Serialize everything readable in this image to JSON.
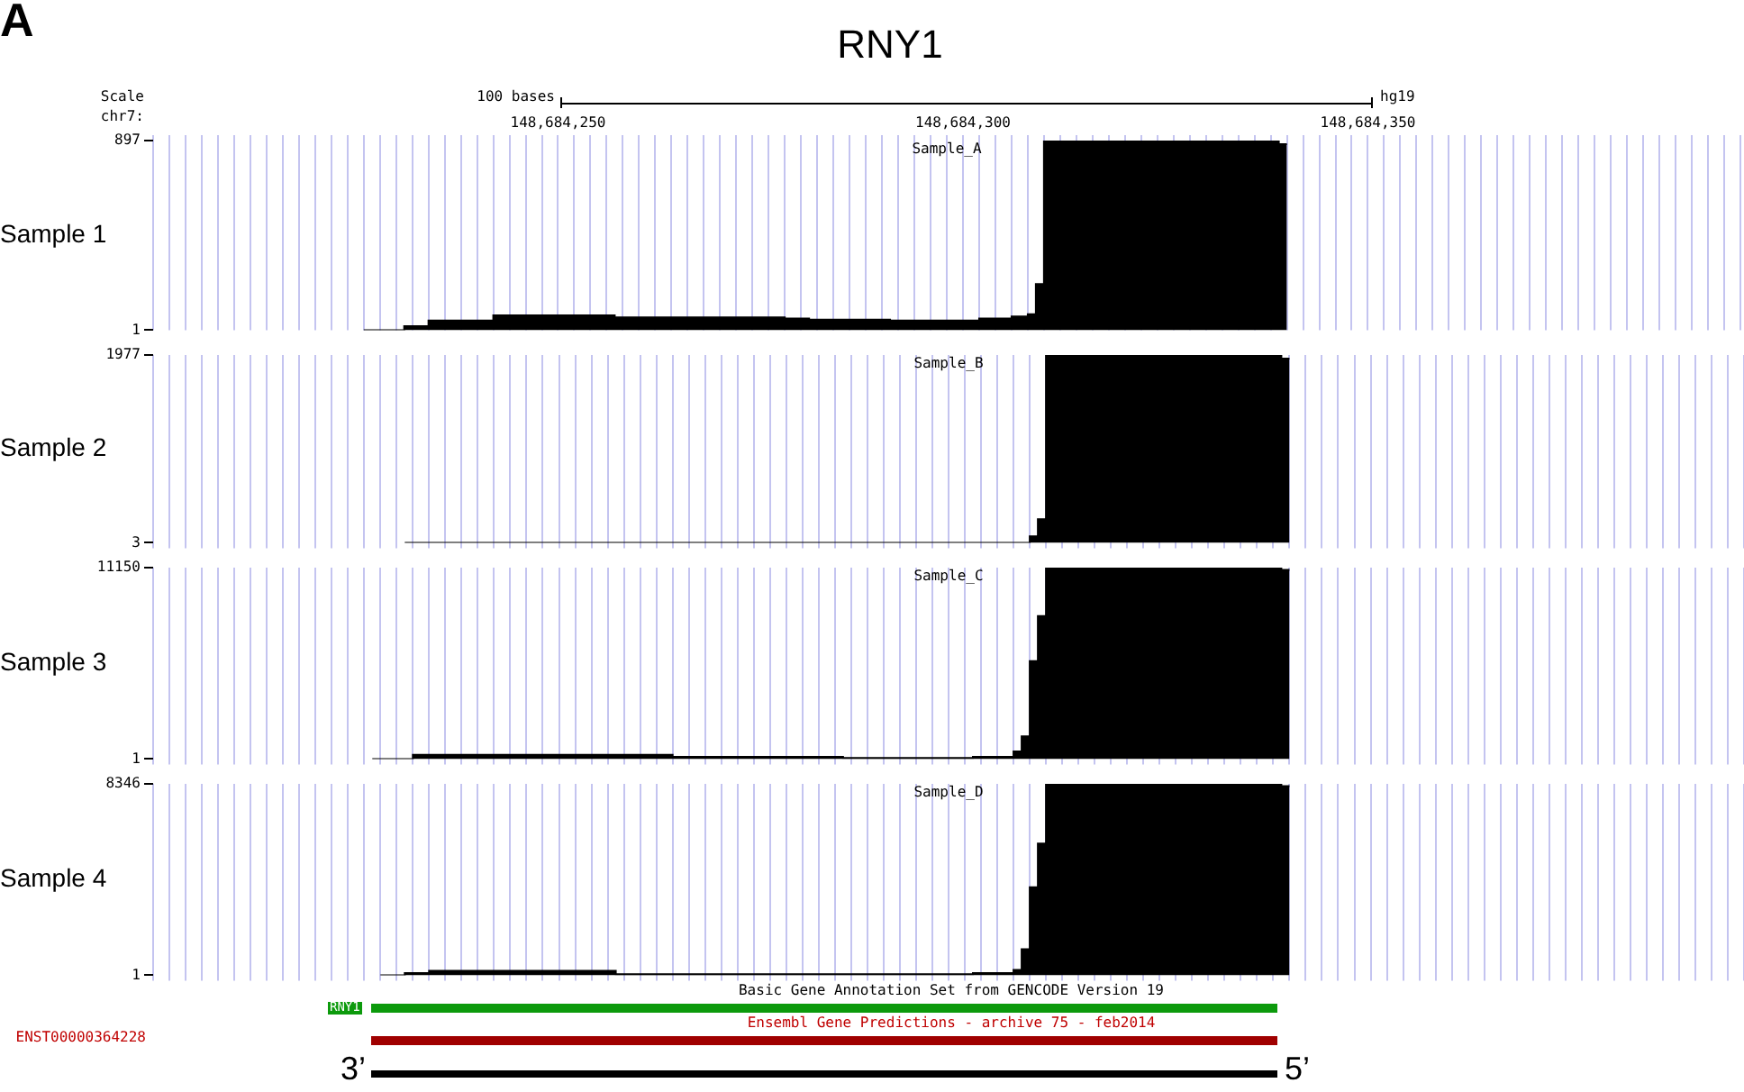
{
  "chart_data": [
    {
      "type": "histogram",
      "title": "Sample_A",
      "ylabel": "Sample 1",
      "color": "#000000",
      "grid": "x",
      "bins": [
        148684226,
        148684231,
        148684234,
        148684242,
        148684257,
        148684278,
        148684281,
        148684291,
        148684302,
        148684306,
        148684308,
        148684309,
        148684310,
        148684313,
        148684339,
        148684340
      ],
      "values": [
        1,
        20,
        46,
        71,
        61,
        56,
        51,
        46,
        56,
        66,
        76,
        219,
        893,
        897,
        880
      ],
      "xlim": [
        148684200,
        148684396
      ],
      "xticks": [
        {
          "value": 148684200,
          "label": null
        },
        {
          "value": 148684202,
          "label": null
        },
        {
          "value": 148684204,
          "label": null
        },
        {
          "value": 148684206,
          "label": null
        },
        {
          "value": 148684208,
          "label": null
        },
        {
          "value": 148684210,
          "label": null
        },
        {
          "value": 148684212,
          "label": null
        },
        {
          "value": 148684214,
          "label": null
        },
        {
          "value": 148684216,
          "label": null
        },
        {
          "value": 148684218,
          "label": null
        },
        {
          "value": 148684220,
          "label": null
        },
        {
          "value": 148684222,
          "label": null
        },
        {
          "value": 148684224,
          "label": null
        },
        {
          "value": 148684226,
          "label": null
        },
        {
          "value": 148684228,
          "label": null
        },
        {
          "value": 148684230,
          "label": null
        },
        {
          "value": 148684232,
          "label": null
        },
        {
          "value": 148684234,
          "label": null
        },
        {
          "value": 148684236,
          "label": null
        },
        {
          "value": 148684238,
          "label": null
        },
        {
          "value": 148684240,
          "label": null
        },
        {
          "value": 148684242,
          "label": null
        },
        {
          "value": 148684244,
          "label": null
        },
        {
          "value": 148684246,
          "label": null
        },
        {
          "value": 148684248,
          "label": null
        },
        {
          "value": 148684250,
          "label": "148,684,250"
        },
        {
          "value": 148684252,
          "label": null
        },
        {
          "value": 148684254,
          "label": null
        },
        {
          "value": 148684256,
          "label": null
        },
        {
          "value": 148684258,
          "label": null
        },
        {
          "value": 148684260,
          "label": null
        },
        {
          "value": 148684262,
          "label": null
        },
        {
          "value": 148684264,
          "label": null
        },
        {
          "value": 148684266,
          "label": null
        },
        {
          "value": 148684268,
          "label": null
        },
        {
          "value": 148684270,
          "label": null
        },
        {
          "value": 148684272,
          "label": null
        },
        {
          "value": 148684274,
          "label": null
        },
        {
          "value": 148684276,
          "label": null
        },
        {
          "value": 148684278,
          "label": null
        },
        {
          "value": 148684280,
          "label": null
        },
        {
          "value": 148684282,
          "label": null
        },
        {
          "value": 148684284,
          "label": null
        },
        {
          "value": 148684286,
          "label": null
        },
        {
          "value": 148684288,
          "label": null
        },
        {
          "value": 148684290,
          "label": null
        },
        {
          "value": 148684292,
          "label": null
        },
        {
          "value": 148684294,
          "label": null
        },
        {
          "value": 148684296,
          "label": null
        },
        {
          "value": 148684298,
          "label": null
        },
        {
          "value": 148684300,
          "label": "148,684,300"
        },
        {
          "value": 148684302,
          "label": null
        },
        {
          "value": 148684304,
          "label": null
        },
        {
          "value": 148684306,
          "label": null
        },
        {
          "value": 148684308,
          "label": null
        },
        {
          "value": 148684310,
          "label": null
        },
        {
          "value": 148684312,
          "label": null
        },
        {
          "value": 148684314,
          "label": null
        },
        {
          "value": 148684316,
          "label": null
        },
        {
          "value": 148684318,
          "label": null
        },
        {
          "value": 148684320,
          "label": null
        },
        {
          "value": 148684322,
          "label": null
        },
        {
          "value": 148684324,
          "label": null
        },
        {
          "value": 148684326,
          "label": null
        },
        {
          "value": 148684328,
          "label": null
        },
        {
          "value": 148684330,
          "label": null
        },
        {
          "value": 148684332,
          "label": null
        },
        {
          "value": 148684334,
          "label": null
        },
        {
          "value": 148684336,
          "label": null
        },
        {
          "value": 148684338,
          "label": null
        },
        {
          "value": 148684340,
          "label": null
        },
        {
          "value": 148684342,
          "label": null
        },
        {
          "value": 148684344,
          "label": null
        },
        {
          "value": 148684346,
          "label": null
        },
        {
          "value": 148684348,
          "label": null
        },
        {
          "value": 148684350,
          "label": "148,684,350"
        },
        {
          "value": 148684352,
          "label": null
        },
        {
          "value": 148684354,
          "label": null
        },
        {
          "value": 148684356,
          "label": null
        },
        {
          "value": 148684358,
          "label": null
        },
        {
          "value": 148684360,
          "label": null
        },
        {
          "value": 148684362,
          "label": null
        },
        {
          "value": 148684364,
          "label": null
        },
        {
          "value": 148684366,
          "label": null
        },
        {
          "value": 148684368,
          "label": null
        },
        {
          "value": 148684370,
          "label": null
        },
        {
          "value": 148684372,
          "label": null
        },
        {
          "value": 148684374,
          "label": null
        },
        {
          "value": 148684376,
          "label": null
        },
        {
          "value": 148684378,
          "label": null
        },
        {
          "value": 148684380,
          "label": null
        },
        {
          "value": 148684382,
          "label": null
        },
        {
          "value": 148684384,
          "label": null
        },
        {
          "value": 148684386,
          "label": null
        },
        {
          "value": 148684388,
          "label": null
        },
        {
          "value": 148684390,
          "label": null
        },
        {
          "value": 148684392,
          "label": null
        },
        {
          "value": 148684394,
          "label": null
        },
        {
          "value": 148684396,
          "label": null
        }
      ],
      "ylim": [
        1,
        897
      ],
      "yticks": [
        1,
        897
      ],
      "annotations": [
        "A",
        "RNY1",
        "Scale",
        "chr7:",
        "100 bases",
        "hg19"
      ]
    },
    {
      "type": "histogram",
      "title": "Sample_B",
      "ylabel": "Sample 2",
      "color": "#000000",
      "grid": "x",
      "tick_labels": "y",
      "bins": [
        148684231,
        148684308,
        148684309,
        148684310,
        148684339,
        148684340
      ],
      "values": [
        3,
        70,
        250,
        1977,
        1940
      ],
      "xlim": [
        148684200,
        148684396
      ],
      "xticks": [
        {
          "value": 148684200,
          "label": null
        },
        {
          "value": 148684202,
          "label": null
        },
        {
          "value": 148684204,
          "label": null
        },
        {
          "value": 148684206,
          "label": null
        },
        {
          "value": 148684208,
          "label": null
        },
        {
          "value": 148684210,
          "label": null
        },
        {
          "value": 148684212,
          "label": null
        },
        {
          "value": 148684214,
          "label": null
        },
        {
          "value": 148684216,
          "label": null
        },
        {
          "value": 148684218,
          "label": null
        },
        {
          "value": 148684220,
          "label": null
        },
        {
          "value": 148684222,
          "label": null
        },
        {
          "value": 148684224,
          "label": null
        },
        {
          "value": 148684226,
          "label": null
        },
        {
          "value": 148684228,
          "label": null
        },
        {
          "value": 148684230,
          "label": null
        },
        {
          "value": 148684232,
          "label": null
        },
        {
          "value": 148684234,
          "label": null
        },
        {
          "value": 148684236,
          "label": null
        },
        {
          "value": 148684238,
          "label": null
        },
        {
          "value": 148684240,
          "label": null
        },
        {
          "value": 148684242,
          "label": null
        },
        {
          "value": 148684244,
          "label": null
        },
        {
          "value": 148684246,
          "label": null
        },
        {
          "value": 148684248,
          "label": null
        },
        {
          "value": 148684250,
          "label": null
        },
        {
          "value": 148684252,
          "label": null
        },
        {
          "value": 148684254,
          "label": null
        },
        {
          "value": 148684256,
          "label": null
        },
        {
          "value": 148684258,
          "label": null
        },
        {
          "value": 148684260,
          "label": null
        },
        {
          "value": 148684262,
          "label": null
        },
        {
          "value": 148684264,
          "label": null
        },
        {
          "value": 148684266,
          "label": null
        },
        {
          "value": 148684268,
          "label": null
        },
        {
          "value": 148684270,
          "label": null
        },
        {
          "value": 148684272,
          "label": null
        },
        {
          "value": 148684274,
          "label": null
        },
        {
          "value": 148684276,
          "label": null
        },
        {
          "value": 148684278,
          "label": null
        },
        {
          "value": 148684280,
          "label": null
        },
        {
          "value": 148684282,
          "label": null
        },
        {
          "value": 148684284,
          "label": null
        },
        {
          "value": 148684286,
          "label": null
        },
        {
          "value": 148684288,
          "label": null
        },
        {
          "value": 148684290,
          "label": null
        },
        {
          "value": 148684292,
          "label": null
        },
        {
          "value": 148684294,
          "label": null
        },
        {
          "value": 148684296,
          "label": null
        },
        {
          "value": 148684298,
          "label": null
        },
        {
          "value": 148684300,
          "label": null
        },
        {
          "value": 148684302,
          "label": null
        },
        {
          "value": 148684304,
          "label": null
        },
        {
          "value": 148684306,
          "label": null
        },
        {
          "value": 148684308,
          "label": null
        },
        {
          "value": 148684310,
          "label": null
        },
        {
          "value": 148684312,
          "label": null
        },
        {
          "value": 148684314,
          "label": null
        },
        {
          "value": 148684316,
          "label": null
        },
        {
          "value": 148684318,
          "label": null
        },
        {
          "value": 148684320,
          "label": null
        },
        {
          "value": 148684322,
          "label": null
        },
        {
          "value": 148684324,
          "label": null
        },
        {
          "value": 148684326,
          "label": null
        },
        {
          "value": 148684328,
          "label": null
        },
        {
          "value": 148684330,
          "label": null
        },
        {
          "value": 148684332,
          "label": null
        },
        {
          "value": 148684334,
          "label": null
        },
        {
          "value": 148684336,
          "label": null
        },
        {
          "value": 148684338,
          "label": null
        },
        {
          "value": 148684340,
          "label": null
        },
        {
          "value": 148684342,
          "label": null
        },
        {
          "value": 148684344,
          "label": null
        },
        {
          "value": 148684346,
          "label": null
        },
        {
          "value": 148684348,
          "label": null
        },
        {
          "value": 148684350,
          "label": null
        },
        {
          "value": 148684352,
          "label": null
        },
        {
          "value": 148684354,
          "label": null
        },
        {
          "value": 148684356,
          "label": null
        },
        {
          "value": 148684358,
          "label": null
        },
        {
          "value": 148684360,
          "label": null
        },
        {
          "value": 148684362,
          "label": null
        },
        {
          "value": 148684364,
          "label": null
        },
        {
          "value": 148684366,
          "label": null
        },
        {
          "value": 148684368,
          "label": null
        },
        {
          "value": 148684370,
          "label": null
        },
        {
          "value": 148684372,
          "label": null
        },
        {
          "value": 148684374,
          "label": null
        },
        {
          "value": 148684376,
          "label": null
        },
        {
          "value": 148684378,
          "label": null
        },
        {
          "value": 148684380,
          "label": null
        },
        {
          "value": 148684382,
          "label": null
        },
        {
          "value": 148684384,
          "label": null
        },
        {
          "value": 148684386,
          "label": null
        },
        {
          "value": 148684388,
          "label": null
        },
        {
          "value": 148684390,
          "label": null
        },
        {
          "value": 148684392,
          "label": null
        },
        {
          "value": 148684394,
          "label": null
        },
        {
          "value": 148684396,
          "label": null
        }
      ],
      "ylim": [
        3,
        1977
      ],
      "yticks": [
        3,
        1977
      ]
    },
    {
      "type": "histogram",
      "title": "Sample_C",
      "ylabel": "Sample 3",
      "color": "#000000",
      "grid": "x",
      "tick_labels": "y",
      "bins": [
        148684227,
        148684232,
        148684264,
        148684285,
        148684301,
        148684306,
        148684307,
        148684308,
        148684309,
        148684310,
        148684339,
        148684340
      ],
      "values": [
        1,
        250,
        125,
        63,
        125,
        440,
        1315,
        5700,
        8330,
        11150,
        11025
      ],
      "xlim": [
        148684200,
        148684396
      ],
      "xticks": [
        {
          "value": 148684200,
          "label": null
        },
        {
          "value": 148684202,
          "label": null
        },
        {
          "value": 148684204,
          "label": null
        },
        {
          "value": 148684206,
          "label": null
        },
        {
          "value": 148684208,
          "label": null
        },
        {
          "value": 148684210,
          "label": null
        },
        {
          "value": 148684212,
          "label": null
        },
        {
          "value": 148684214,
          "label": null
        },
        {
          "value": 148684216,
          "label": null
        },
        {
          "value": 148684218,
          "label": null
        },
        {
          "value": 148684220,
          "label": null
        },
        {
          "value": 148684222,
          "label": null
        },
        {
          "value": 148684224,
          "label": null
        },
        {
          "value": 148684226,
          "label": null
        },
        {
          "value": 148684228,
          "label": null
        },
        {
          "value": 148684230,
          "label": null
        },
        {
          "value": 148684232,
          "label": null
        },
        {
          "value": 148684234,
          "label": null
        },
        {
          "value": 148684236,
          "label": null
        },
        {
          "value": 148684238,
          "label": null
        },
        {
          "value": 148684240,
          "label": null
        },
        {
          "value": 148684242,
          "label": null
        },
        {
          "value": 148684244,
          "label": null
        },
        {
          "value": 148684246,
          "label": null
        },
        {
          "value": 148684248,
          "label": null
        },
        {
          "value": 148684250,
          "label": null
        },
        {
          "value": 148684252,
          "label": null
        },
        {
          "value": 148684254,
          "label": null
        },
        {
          "value": 148684256,
          "label": null
        },
        {
          "value": 148684258,
          "label": null
        },
        {
          "value": 148684260,
          "label": null
        },
        {
          "value": 148684262,
          "label": null
        },
        {
          "value": 148684264,
          "label": null
        },
        {
          "value": 148684266,
          "label": null
        },
        {
          "value": 148684268,
          "label": null
        },
        {
          "value": 148684270,
          "label": null
        },
        {
          "value": 148684272,
          "label": null
        },
        {
          "value": 148684274,
          "label": null
        },
        {
          "value": 148684276,
          "label": null
        },
        {
          "value": 148684278,
          "label": null
        },
        {
          "value": 148684280,
          "label": null
        },
        {
          "value": 148684282,
          "label": null
        },
        {
          "value": 148684284,
          "label": null
        },
        {
          "value": 148684286,
          "label": null
        },
        {
          "value": 148684288,
          "label": null
        },
        {
          "value": 148684290,
          "label": null
        },
        {
          "value": 148684292,
          "label": null
        },
        {
          "value": 148684294,
          "label": null
        },
        {
          "value": 148684296,
          "label": null
        },
        {
          "value": 148684298,
          "label": null
        },
        {
          "value": 148684300,
          "label": null
        },
        {
          "value": 148684302,
          "label": null
        },
        {
          "value": 148684304,
          "label": null
        },
        {
          "value": 148684306,
          "label": null
        },
        {
          "value": 148684308,
          "label": null
        },
        {
          "value": 148684310,
          "label": null
        },
        {
          "value": 148684312,
          "label": null
        },
        {
          "value": 148684314,
          "label": null
        },
        {
          "value": 148684316,
          "label": null
        },
        {
          "value": 148684318,
          "label": null
        },
        {
          "value": 148684320,
          "label": null
        },
        {
          "value": 148684322,
          "label": null
        },
        {
          "value": 148684324,
          "label": null
        },
        {
          "value": 148684326,
          "label": null
        },
        {
          "value": 148684328,
          "label": null
        },
        {
          "value": 148684330,
          "label": null
        },
        {
          "value": 148684332,
          "label": null
        },
        {
          "value": 148684334,
          "label": null
        },
        {
          "value": 148684336,
          "label": null
        },
        {
          "value": 148684338,
          "label": null
        },
        {
          "value": 148684340,
          "label": null
        },
        {
          "value": 148684342,
          "label": null
        },
        {
          "value": 148684344,
          "label": null
        },
        {
          "value": 148684346,
          "label": null
        },
        {
          "value": 148684348,
          "label": null
        },
        {
          "value": 148684350,
          "label": null
        },
        {
          "value": 148684352,
          "label": null
        },
        {
          "value": 148684354,
          "label": null
        },
        {
          "value": 148684356,
          "label": null
        },
        {
          "value": 148684358,
          "label": null
        },
        {
          "value": 148684360,
          "label": null
        },
        {
          "value": 148684362,
          "label": null
        },
        {
          "value": 148684364,
          "label": null
        },
        {
          "value": 148684366,
          "label": null
        },
        {
          "value": 148684368,
          "label": null
        },
        {
          "value": 148684370,
          "label": null
        },
        {
          "value": 148684372,
          "label": null
        },
        {
          "value": 148684374,
          "label": null
        },
        {
          "value": 148684376,
          "label": null
        },
        {
          "value": 148684378,
          "label": null
        },
        {
          "value": 148684380,
          "label": null
        },
        {
          "value": 148684382,
          "label": null
        },
        {
          "value": 148684384,
          "label": null
        },
        {
          "value": 148684386,
          "label": null
        },
        {
          "value": 148684388,
          "label": null
        },
        {
          "value": 148684390,
          "label": null
        },
        {
          "value": 148684392,
          "label": null
        },
        {
          "value": 148684394,
          "label": null
        },
        {
          "value": 148684396,
          "label": null
        }
      ],
      "ylim": [
        1,
        11150
      ],
      "yticks": [
        1,
        11150
      ]
    },
    {
      "type": "histogram",
      "title": "Sample_D",
      "ylabel": "Sample 4",
      "color": "#000000",
      "grid": "x",
      "tick_labels": "y",
      "bins": [
        148684228,
        148684231,
        148684234,
        148684257,
        148684301,
        148684306,
        148684307,
        148684308,
        148684309,
        148684310,
        148684339,
        148684340
      ],
      "values": [
        1,
        95,
        190,
        47,
        95,
        237,
        1140,
        3840,
        5740,
        8346,
        8250
      ],
      "xlim": [
        148684200,
        148684396
      ],
      "xticks": [
        {
          "value": 148684200,
          "label": null
        },
        {
          "value": 148684202,
          "label": null
        },
        {
          "value": 148684204,
          "label": null
        },
        {
          "value": 148684206,
          "label": null
        },
        {
          "value": 148684208,
          "label": null
        },
        {
          "value": 148684210,
          "label": null
        },
        {
          "value": 148684212,
          "label": null
        },
        {
          "value": 148684214,
          "label": null
        },
        {
          "value": 148684216,
          "label": null
        },
        {
          "value": 148684218,
          "label": null
        },
        {
          "value": 148684220,
          "label": null
        },
        {
          "value": 148684222,
          "label": null
        },
        {
          "value": 148684224,
          "label": null
        },
        {
          "value": 148684226,
          "label": null
        },
        {
          "value": 148684228,
          "label": null
        },
        {
          "value": 148684230,
          "label": null
        },
        {
          "value": 148684232,
          "label": null
        },
        {
          "value": 148684234,
          "label": null
        },
        {
          "value": 148684236,
          "label": null
        },
        {
          "value": 148684238,
          "label": null
        },
        {
          "value": 148684240,
          "label": null
        },
        {
          "value": 148684242,
          "label": null
        },
        {
          "value": 148684244,
          "label": null
        },
        {
          "value": 148684246,
          "label": null
        },
        {
          "value": 148684248,
          "label": null
        },
        {
          "value": 148684250,
          "label": null
        },
        {
          "value": 148684252,
          "label": null
        },
        {
          "value": 148684254,
          "label": null
        },
        {
          "value": 148684256,
          "label": null
        },
        {
          "value": 148684258,
          "label": null
        },
        {
          "value": 148684260,
          "label": null
        },
        {
          "value": 148684262,
          "label": null
        },
        {
          "value": 148684264,
          "label": null
        },
        {
          "value": 148684266,
          "label": null
        },
        {
          "value": 148684268,
          "label": null
        },
        {
          "value": 148684270,
          "label": null
        },
        {
          "value": 148684272,
          "label": null
        },
        {
          "value": 148684274,
          "label": null
        },
        {
          "value": 148684276,
          "label": null
        },
        {
          "value": 148684278,
          "label": null
        },
        {
          "value": 148684280,
          "label": null
        },
        {
          "value": 148684282,
          "label": null
        },
        {
          "value": 148684284,
          "label": null
        },
        {
          "value": 148684286,
          "label": null
        },
        {
          "value": 148684288,
          "label": null
        },
        {
          "value": 148684290,
          "label": null
        },
        {
          "value": 148684292,
          "label": null
        },
        {
          "value": 148684294,
          "label": null
        },
        {
          "value": 148684296,
          "label": null
        },
        {
          "value": 148684298,
          "label": null
        },
        {
          "value": 148684300,
          "label": null
        },
        {
          "value": 148684302,
          "label": null
        },
        {
          "value": 148684304,
          "label": null
        },
        {
          "value": 148684306,
          "label": null
        },
        {
          "value": 148684308,
          "label": null
        },
        {
          "value": 148684310,
          "label": null
        },
        {
          "value": 148684312,
          "label": null
        },
        {
          "value": 148684314,
          "label": null
        },
        {
          "value": 148684316,
          "label": null
        },
        {
          "value": 148684318,
          "label": null
        },
        {
          "value": 148684320,
          "label": null
        },
        {
          "value": 148684322,
          "label": null
        },
        {
          "value": 148684324,
          "label": null
        },
        {
          "value": 148684326,
          "label": null
        },
        {
          "value": 148684328,
          "label": null
        },
        {
          "value": 148684330,
          "label": null
        },
        {
          "value": 148684332,
          "label": null
        },
        {
          "value": 148684334,
          "label": null
        },
        {
          "value": 148684336,
          "label": null
        },
        {
          "value": 148684338,
          "label": null
        },
        {
          "value": 148684340,
          "label": null
        },
        {
          "value": 148684342,
          "label": null
        },
        {
          "value": 148684344,
          "label": null
        },
        {
          "value": 148684346,
          "label": null
        },
        {
          "value": 148684348,
          "label": null
        },
        {
          "value": 148684350,
          "label": null
        },
        {
          "value": 148684352,
          "label": null
        },
        {
          "value": 148684354,
          "label": null
        },
        {
          "value": 148684356,
          "label": null
        },
        {
          "value": 148684358,
          "label": null
        },
        {
          "value": 148684360,
          "label": null
        },
        {
          "value": 148684362,
          "label": null
        },
        {
          "value": 148684364,
          "label": null
        },
        {
          "value": 148684366,
          "label": null
        },
        {
          "value": 148684368,
          "label": null
        },
        {
          "value": 148684370,
          "label": null
        },
        {
          "value": 148684372,
          "label": null
        },
        {
          "value": 148684374,
          "label": null
        },
        {
          "value": 148684376,
          "label": null
        },
        {
          "value": 148684378,
          "label": null
        },
        {
          "value": 148684380,
          "label": null
        },
        {
          "value": 148684382,
          "label": null
        },
        {
          "value": 148684384,
          "label": null
        },
        {
          "value": 148684386,
          "label": null
        },
        {
          "value": 148684388,
          "label": null
        },
        {
          "value": 148684390,
          "label": null
        },
        {
          "value": 148684392,
          "label": null
        },
        {
          "value": 148684394,
          "label": null
        },
        {
          "value": 148684396,
          "label": null
        }
      ],
      "ylim": [
        1,
        8346
      ],
      "yticks": [
        1,
        8346
      ],
      "annotations": [
        "Basic Gene Annotation Set from GENCODE Version 19",
        "RNY1",
        "Ensembl Gene Predictions - archive 75 - feb2014",
        "ENST00000364228",
        "3’",
        "5’"
      ]
    }
  ]
}
